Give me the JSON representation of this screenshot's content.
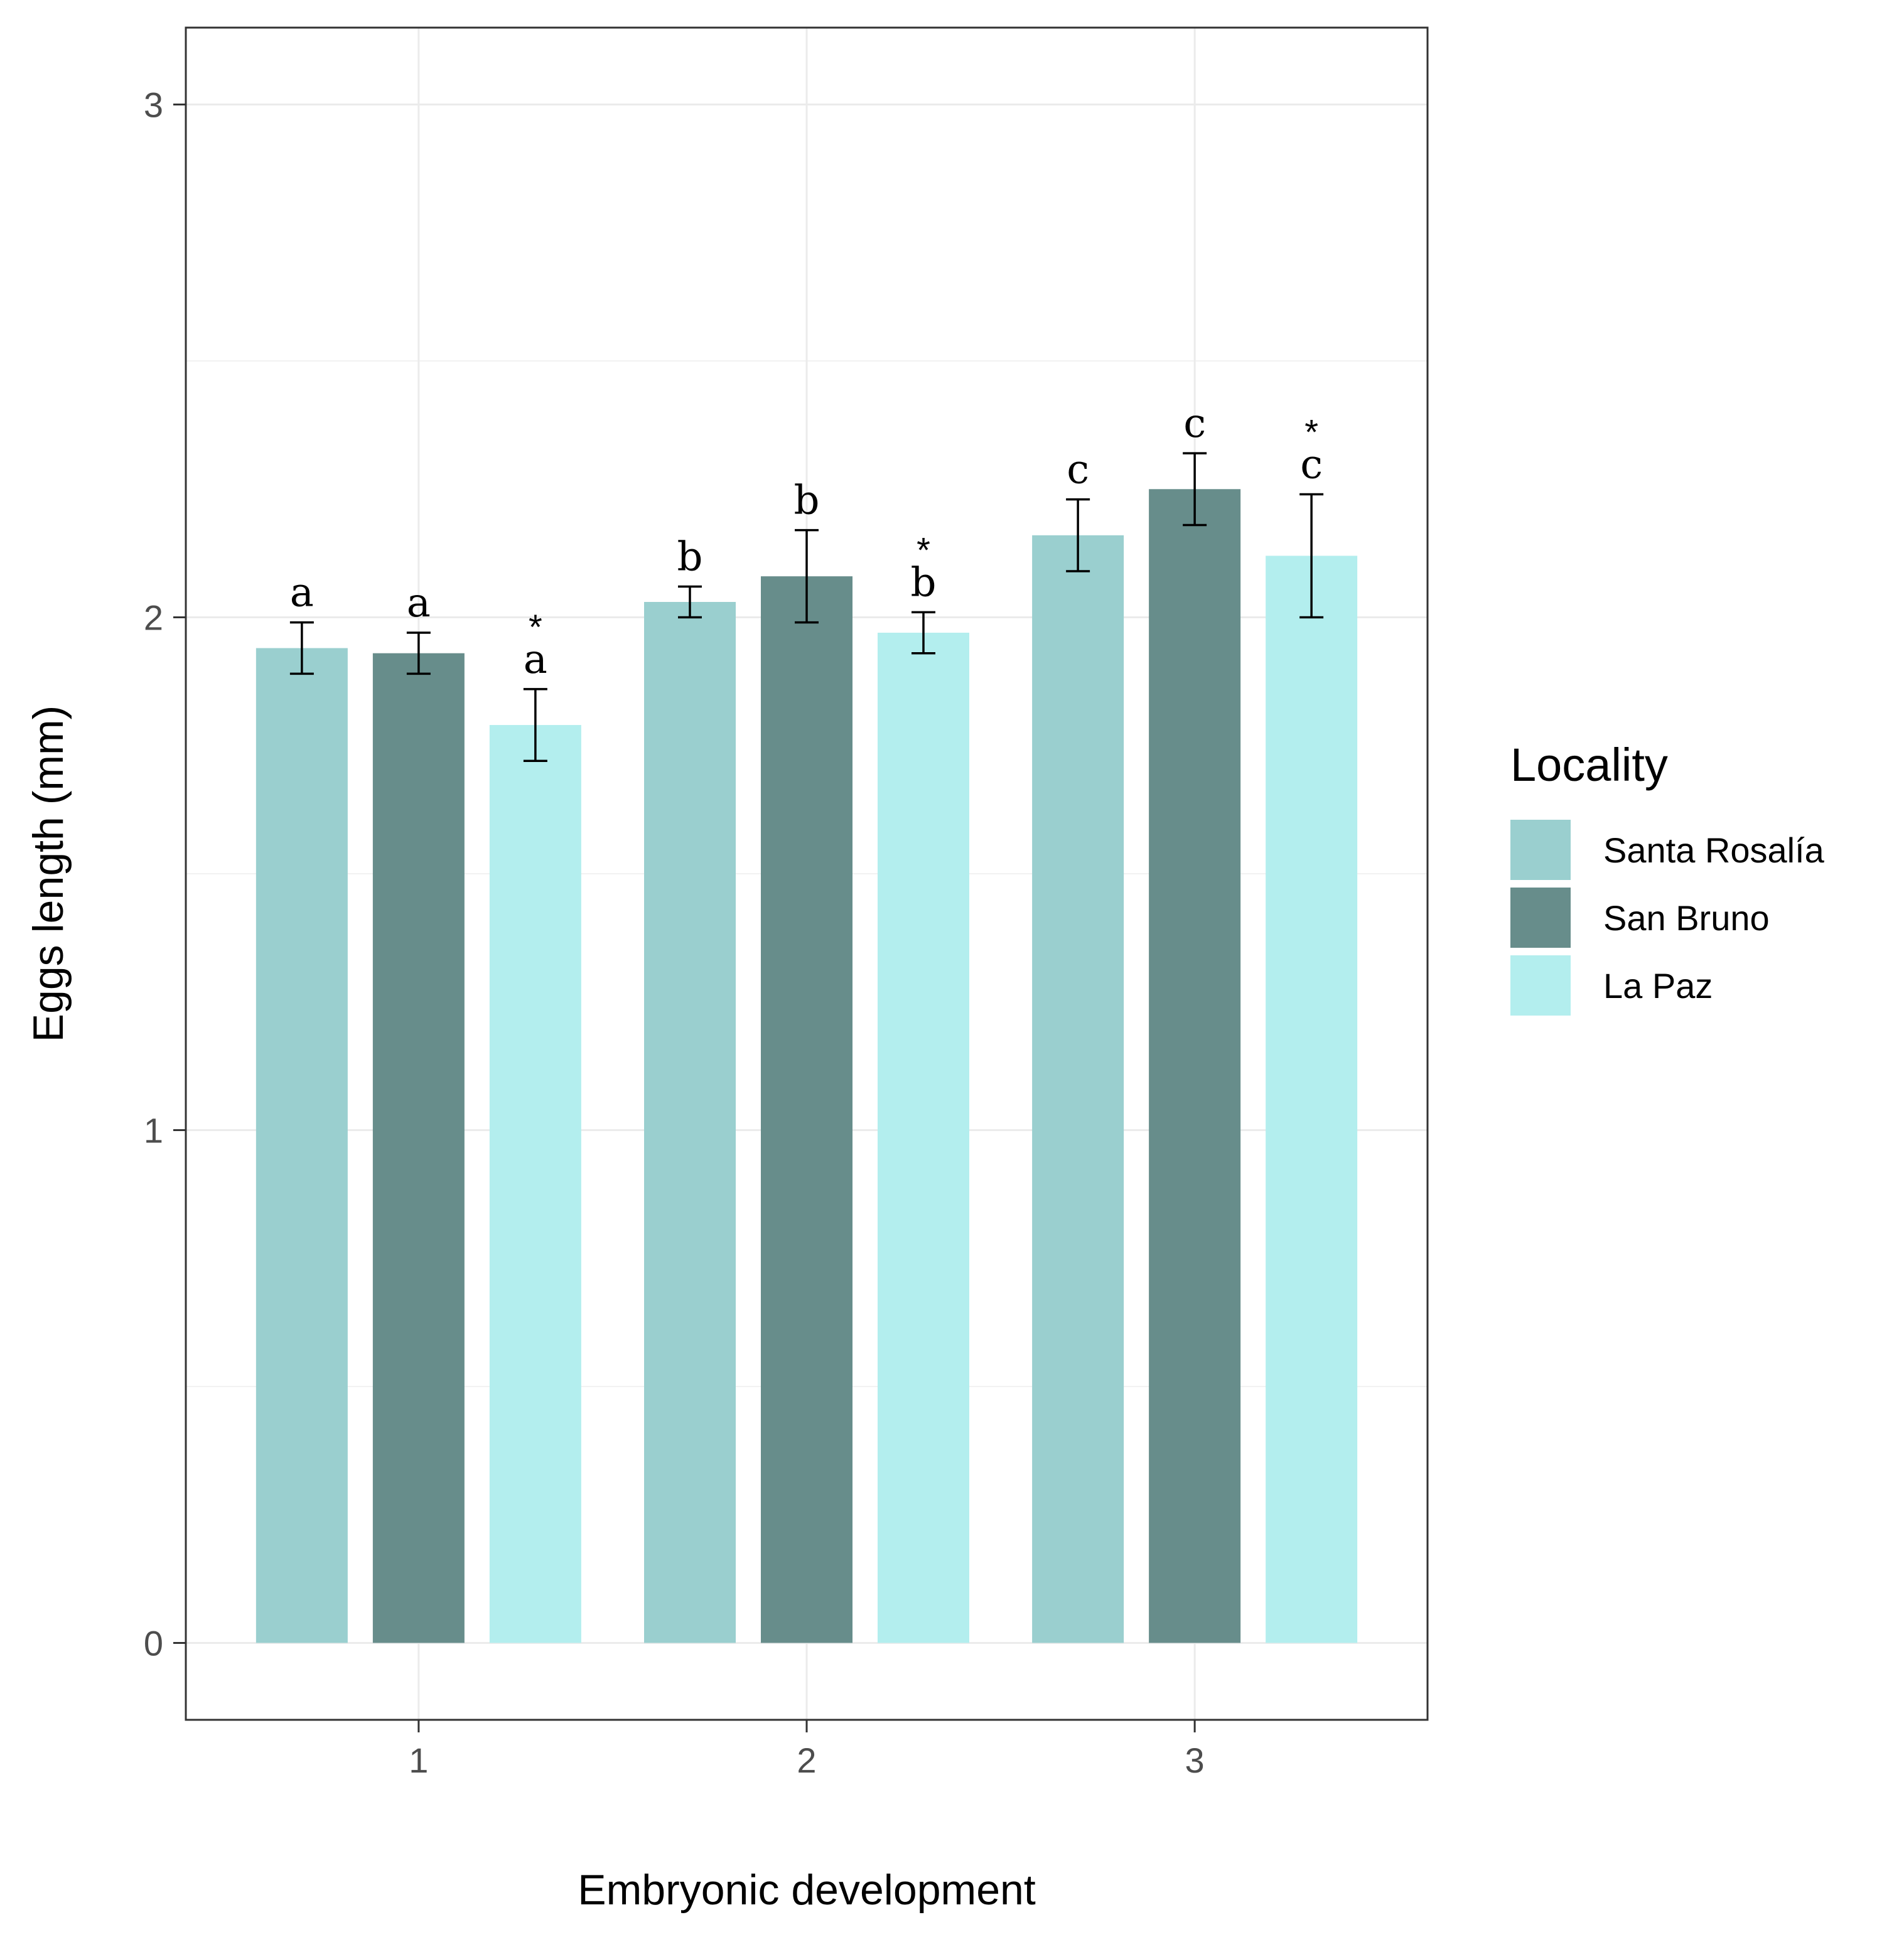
{
  "chart_data": {
    "type": "bar",
    "title": "",
    "xlabel": "Embryonic development",
    "ylabel": "Eggs length (mm)",
    "categories": [
      "1",
      "2",
      "3"
    ],
    "ylim": [
      -0.15,
      3.15
    ],
    "yticks": [
      "0",
      "1",
      "2",
      "3"
    ],
    "grid": true,
    "legend": {
      "title": "Locality",
      "position": "right"
    },
    "series": [
      {
        "name": "Santa Rosalía",
        "color": "#9acfcf",
        "values": [
          1.94,
          2.03,
          2.16
        ],
        "errors": [
          0.05,
          0.03,
          0.07
        ],
        "letters": [
          "a",
          "b",
          "c"
        ],
        "stars": [
          "",
          "",
          ""
        ]
      },
      {
        "name": "San Bruno",
        "color": "#678d8b",
        "values": [
          1.93,
          2.08,
          2.25
        ],
        "errors": [
          0.04,
          0.09,
          0.07
        ],
        "letters": [
          "a",
          "b",
          "c"
        ],
        "stars": [
          "",
          "",
          ""
        ]
      },
      {
        "name": "La Paz",
        "color": "#b3eeee",
        "values": [
          1.79,
          1.97,
          2.12
        ],
        "errors": [
          0.07,
          0.04,
          0.12
        ],
        "letters": [
          "a",
          "b",
          "c"
        ],
        "stars": [
          "*",
          "*",
          "*"
        ]
      }
    ]
  }
}
